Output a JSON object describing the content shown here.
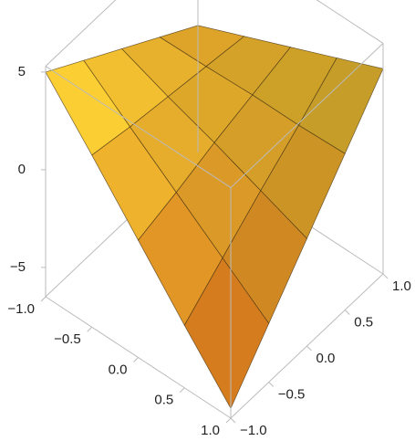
{
  "chart_data": {
    "type": "surface3d",
    "x": [
      -1,
      -0.5,
      0,
      0.5,
      1
    ],
    "y": [
      -1,
      -0.5,
      0,
      0.5,
      1
    ],
    "z": [
      [
        5,
        3.75,
        2.5,
        1.25,
        0
      ],
      [
        2.3,
        1.9,
        1.6,
        1.3,
        1.0
      ],
      [
        -0.5,
        0.1,
        0.8,
        1.4,
        2.0
      ],
      [
        -3.3,
        -1.7,
        -0.1,
        1.4,
        3.0
      ],
      [
        -6,
        -3.5,
        -1,
        1.5,
        4
      ]
    ],
    "xlim": [
      -1,
      1
    ],
    "ylim": [
      -1,
      1
    ],
    "zlim": [
      -6.5,
      5.3
    ],
    "xticks": [
      {
        "value": -1,
        "label": "−1.0"
      },
      {
        "value": -0.5,
        "label": "−0.5"
      },
      {
        "value": 0,
        "label": "0.0"
      },
      0.5,
      {
        "value": 1,
        "label": "1.0"
      }
    ],
    "yticks": [
      {
        "value": -1,
        "label": "−1.0"
      },
      {
        "value": -0.5,
        "label": "−0.5"
      },
      {
        "value": 0,
        "label": "0.0"
      },
      0.5,
      {
        "value": 1,
        "label": "1.0"
      }
    ],
    "zticks": [
      {
        "value": -5,
        "label": "−5"
      },
      0,
      5
    ],
    "colors": [
      "#e8701a",
      "#ffe23a"
    ]
  }
}
